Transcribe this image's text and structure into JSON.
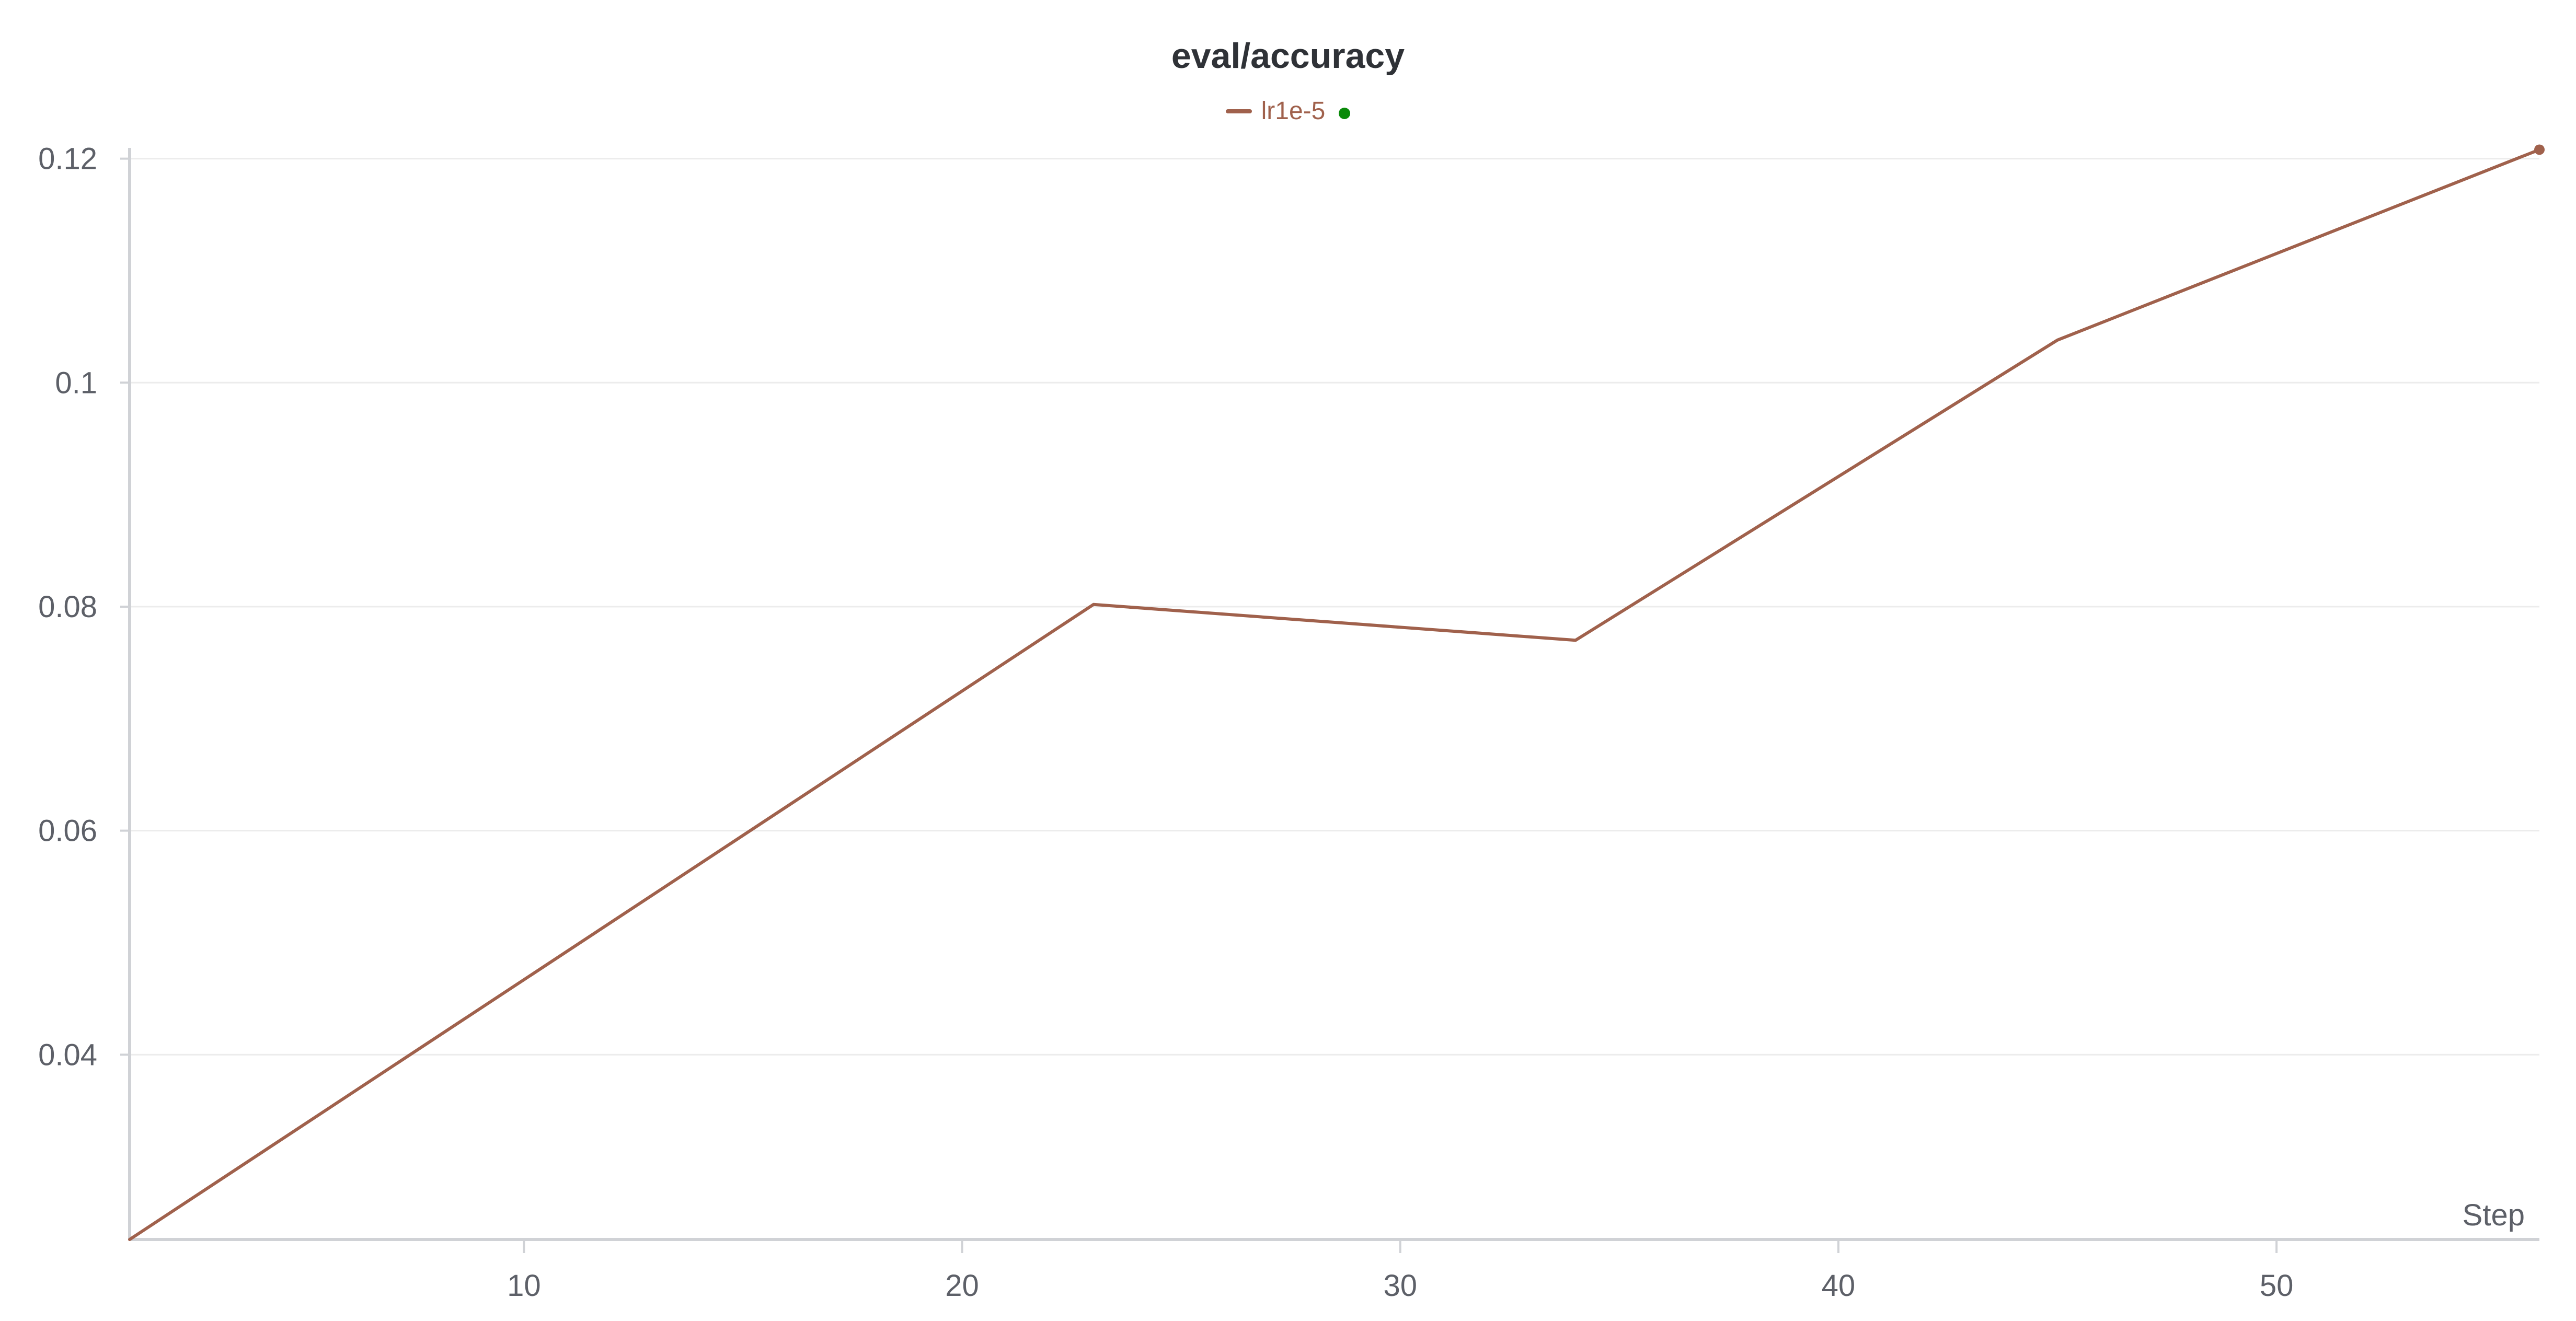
{
  "chart_data": {
    "type": "line",
    "title": "eval/accuracy",
    "xlabel": "Step",
    "ylabel": "",
    "xlim": [
      1,
      56
    ],
    "ylim": [
      0.0235,
      0.1225
    ],
    "x_ticks": [
      10,
      20,
      30,
      40,
      50
    ],
    "y_ticks": [
      0.04,
      0.06,
      0.08,
      0.1,
      0.12
    ],
    "y_tick_labels": [
      "0.04",
      "0.06",
      "0.08",
      "0.1",
      "0.12"
    ],
    "grid": true,
    "legend_position": "top-center",
    "series": [
      {
        "name": "lr1e-5",
        "color": "#a0614c",
        "x": [
          1,
          23,
          34,
          45,
          56
        ],
        "y": [
          0.0235,
          0.0802,
          0.077,
          0.1038,
          0.1208
        ]
      }
    ]
  },
  "legend": {
    "status_color": "#0a8a0a"
  }
}
